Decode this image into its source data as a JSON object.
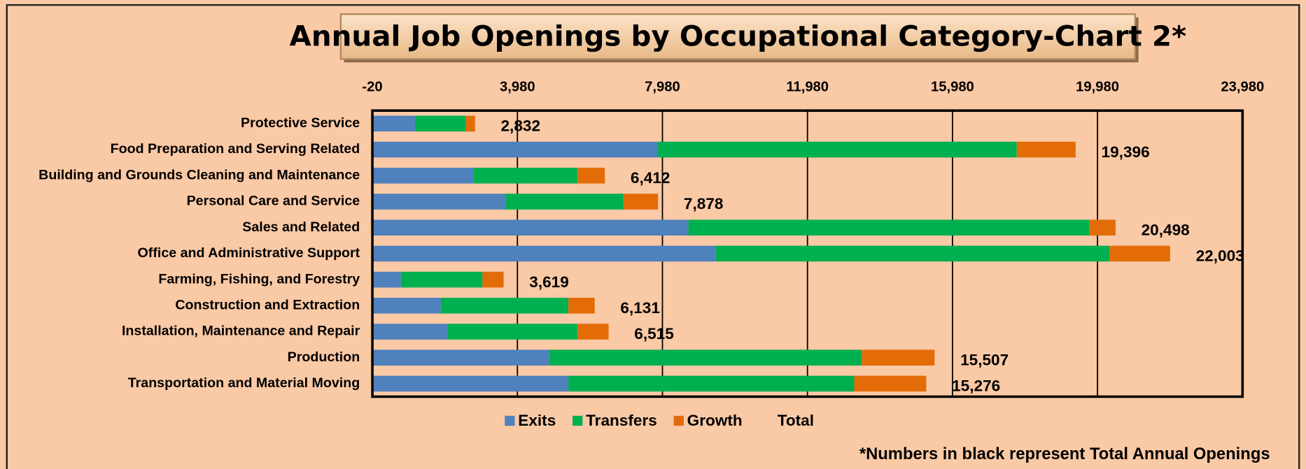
{
  "chart_data": {
    "type": "bar",
    "orientation": "horizontal",
    "stacked": true,
    "title": "Annual Job Openings by Occupational Category-Chart 2*",
    "annotation": "*Numbers in black represent Total Annual Openings",
    "categories": [
      "Protective Service",
      "Food Preparation and Serving Related",
      "Building and Grounds Cleaning and Maintenance",
      "Personal Care and Service",
      "Sales and Related",
      "Office and Administrative Support",
      "Farming, Fishing, and Forestry",
      "Construction and Extraction",
      "Installation, Maintenance and Repair",
      "Production",
      "Transportation and Material Moving"
    ],
    "series": [
      {
        "name": "Exits",
        "color": "#4f81bd",
        "values": [
          1175,
          7865,
          2785,
          3681,
          8716,
          9474,
          785,
          1888,
          2072,
          4877,
          5405
        ]
      },
      {
        "name": "Transfers",
        "color": "#00b050",
        "values": [
          1400,
          9908,
          2873,
          3242,
          11057,
          10851,
          2252,
          3517,
          3586,
          8620,
          7885
        ]
      },
      {
        "name": "Growth",
        "color": "#e36c09",
        "values": [
          257,
          1623,
          754,
          955,
          725,
          1678,
          582,
          726,
          857,
          2010,
          1986
        ]
      }
    ],
    "totals": {
      "name": "Total",
      "values": [
        2832,
        19396,
        6412,
        7878,
        20498,
        22003,
        3619,
        6131,
        6515,
        15507,
        15276
      ],
      "value_labels": [
        "2,832",
        "19,396",
        "6,412",
        "7,878",
        "20,498",
        "22,003",
        "3,619",
        "6,131",
        "6,515",
        "15,507",
        "15,276"
      ]
    },
    "xlim": [
      -20,
      23980
    ],
    "xticks": [
      -20,
      {
        "value": 3980,
        "label": "3,980"
      },
      {
        "value": 7980,
        "label": "7,980"
      },
      {
        "value": 11980,
        "label": "11,980"
      },
      {
        "value": 15980,
        "label": "15,980"
      },
      {
        "value": 19980,
        "label": "19,980"
      },
      {
        "value": 23980,
        "label": "23,980"
      }
    ],
    "grid": true,
    "legend": "bottom"
  }
}
